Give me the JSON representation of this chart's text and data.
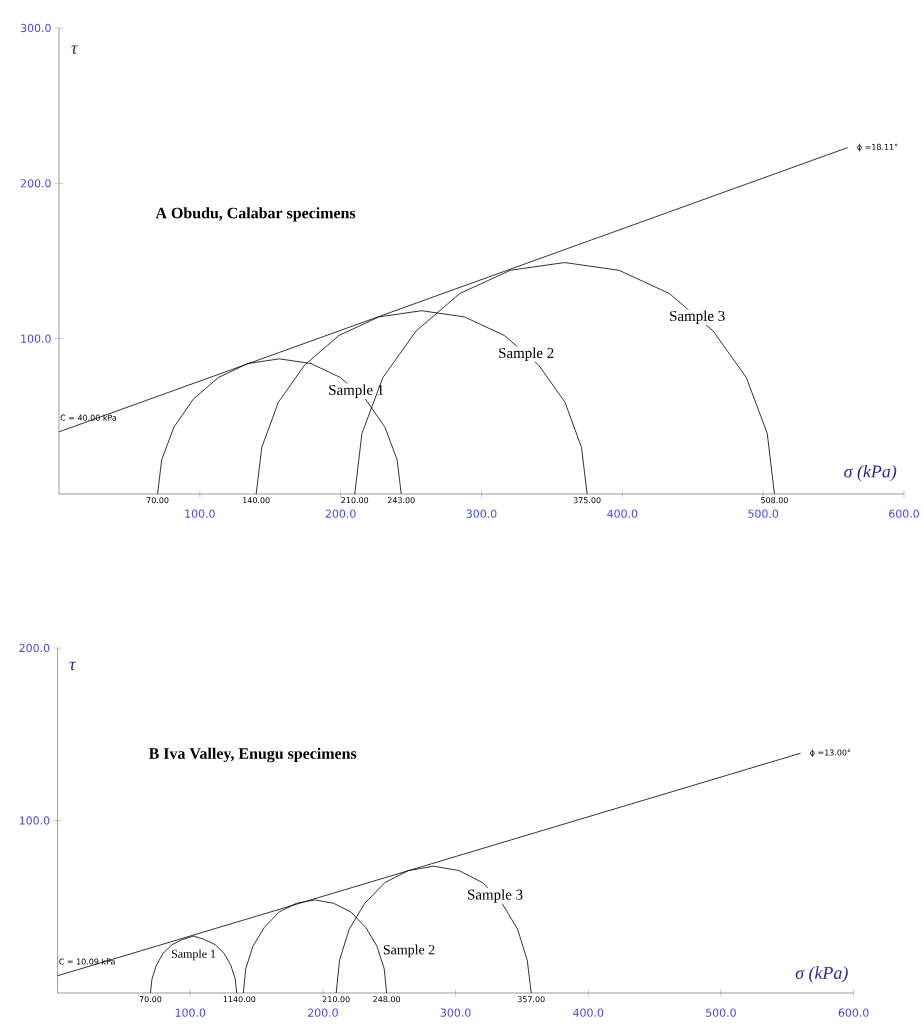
{
  "chart_data": [
    {
      "type": "line",
      "title": "A  Obudu, Calabar specimens",
      "xlabel": "σ (kPa)",
      "ylabel": "τ",
      "xlim": [
        0,
        600
      ],
      "ylim": [
        0,
        300
      ],
      "xticks": [
        {
          "value": 100,
          "label": "100.0"
        },
        {
          "value": 200,
          "label": "200.0"
        },
        {
          "value": 300,
          "label": "300.0"
        },
        {
          "value": 400,
          "label": "400.0"
        },
        {
          "value": 500,
          "label": "500.0"
        },
        {
          "value": 600,
          "label": "600.0"
        }
      ],
      "yticks": [
        {
          "value": 100,
          "label": "100.0"
        },
        {
          "value": 200,
          "label": "200.0"
        },
        {
          "value": 300,
          "label": "300.0"
        }
      ],
      "series": [
        {
          "color": "#000000",
          "x": [
            0,
            560
          ],
          "values": [
            40,
            223
          ]
        },
        {
          "name": "Sample 1",
          "color": "#000000",
          "x": [
            70,
            72.9,
            81.6,
            95.3,
            113.2,
            134.1,
            156.5,
            178.9,
            199.8,
            217.7,
            231.4,
            240.1,
            243
          ],
          "values": [
            0,
            22,
            43,
            61,
            75,
            84,
            87,
            84,
            75,
            61,
            43,
            22,
            0
          ]
        },
        {
          "name": "Sample 2",
          "color": "#000000",
          "x": [
            140,
            144,
            155.7,
            174.4,
            198.7,
            227.1,
            257.5,
            287.9,
            316.3,
            340.6,
            359.3,
            371,
            375
          ],
          "values": [
            0,
            30,
            59,
            83,
            102,
            114,
            118,
            114,
            102,
            83,
            59,
            30,
            0
          ]
        },
        {
          "name": "Sample 3",
          "color": "#000000",
          "x": [
            210,
            215.1,
            230,
            253.6,
            284.5,
            320.4,
            359,
            397.6,
            433.5,
            464.4,
            488,
            502.9,
            508
          ],
          "values": [
            0,
            39,
            75,
            105,
            129,
            144,
            149,
            144,
            129,
            105,
            75,
            39,
            0
          ]
        }
      ],
      "annotations": [
        {
          "text": "C = 40.00 kPa",
          "x": 0,
          "y": 40
        },
        {
          "text": "ϕ =18.11°",
          "x": 560,
          "y": 223
        },
        {
          "text": "70.00",
          "x": 70,
          "y": 0
        },
        {
          "text": "140.00",
          "x": 140,
          "y": 0
        },
        {
          "text": "210.00",
          "x": 210,
          "y": 0
        },
        {
          "text": "243.00",
          "x": 243,
          "y": 0
        },
        {
          "text": "375.00",
          "x": 375,
          "y": 0
        },
        {
          "text": "508.00",
          "x": 508,
          "y": 0
        }
      ]
    },
    {
      "type": "line",
      "title": "B  Iva Valley, Enugu specimens",
      "xlabel": "σ (kPa)",
      "ylabel": "τ",
      "xlim": [
        0,
        600
      ],
      "ylim": [
        0,
        200
      ],
      "xticks": [
        {
          "value": 100,
          "label": "100.0"
        },
        {
          "value": 200,
          "label": "200.0"
        },
        {
          "value": 300,
          "label": "300.0"
        },
        {
          "value": 400,
          "label": "400.0"
        },
        {
          "value": 500,
          "label": "500.0"
        },
        {
          "value": 600,
          "label": "600.0"
        }
      ],
      "yticks": [
        {
          "value": 100,
          "label": "100.0"
        },
        {
          "value": 200,
          "label": "200.0"
        }
      ],
      "series": [
        {
          "color": "#000000",
          "x": [
            0,
            560
          ],
          "values": [
            10,
            139
          ]
        },
        {
          "name": "Sample 1",
          "color": "#000000",
          "x": [
            70,
            71.1,
            74.4,
            79.5,
            86.2,
            94.1,
            102.5,
            110.9,
            118.8,
            125.5,
            130.6,
            133.9,
            135
          ],
          "values": [
            0,
            8,
            16,
            23,
            28,
            31,
            33,
            31,
            28,
            23,
            16,
            8,
            0
          ]
        },
        {
          "name": "Sample 2",
          "color": "#000000",
          "x": [
            140,
            141.8,
            147.2,
            155.8,
            167,
            180,
            194,
            208,
            221,
            232.2,
            240.8,
            246.2,
            248
          ],
          "values": [
            0,
            14,
            27,
            38,
            47,
            52,
            54,
            52,
            47,
            38,
            27,
            14,
            0
          ]
        },
        {
          "name": "Sample 3",
          "color": "#000000",
          "x": [
            210,
            212.5,
            219.8,
            231.5,
            246.7,
            264.5,
            283.5,
            302.5,
            320.3,
            335,
            346.7,
            354,
            357
          ],
          "values": [
            0,
            19,
            37,
            52,
            64,
            71,
            73.5,
            71,
            64,
            52,
            37,
            19,
            0
          ]
        }
      ],
      "annotations": [
        {
          "text": "C = 10.09 kPa",
          "x": 0,
          "y": 10
        },
        {
          "text": "ϕ =13.00°",
          "x": 560,
          "y": 139
        },
        {
          "text": "70.00",
          "x": 70,
          "y": 0
        },
        {
          "text": "1140.00",
          "x": 137,
          "y": 0
        },
        {
          "text": "210.00",
          "x": 210,
          "y": 0
        },
        {
          "text": "248.00",
          "x": 248,
          "y": 0
        },
        {
          "text": "357.00",
          "x": 357,
          "y": 0
        }
      ]
    }
  ]
}
